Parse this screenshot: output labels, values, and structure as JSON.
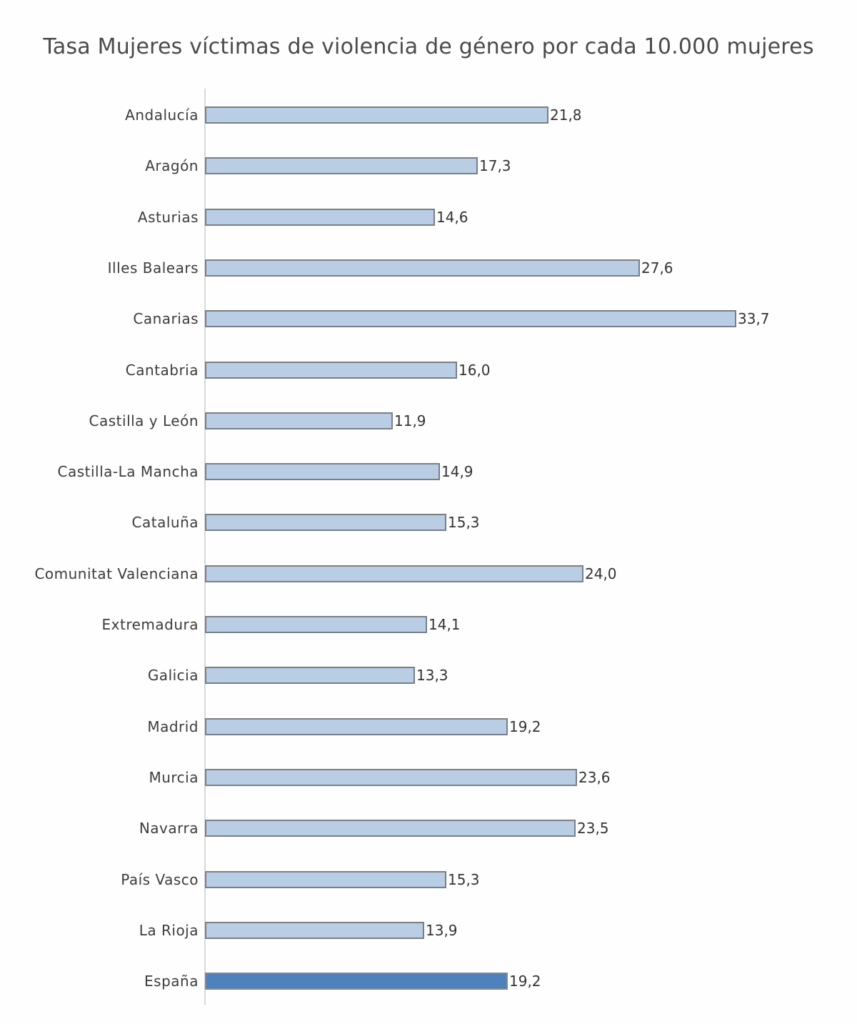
{
  "chart_data": {
    "type": "bar",
    "orientation": "horizontal",
    "title": "Tasa Mujeres víctimas de violencia de género por cada 10.000 mujeres",
    "xlabel": "",
    "ylabel": "",
    "xlim": [
      0,
      35
    ],
    "grid": false,
    "legend": null,
    "data_labels": true,
    "decimal_separator": ",",
    "colors": {
      "default": "#b9cde5",
      "highlight": "#4f81bd",
      "border": "#7a7f86"
    },
    "categories": [
      "Andalucía",
      "Aragón",
      "Asturias",
      "Illes Balears",
      "Canarias",
      "Cantabria",
      "Castilla y León",
      "Castilla-La Mancha",
      "Cataluña",
      "Comunitat Valenciana",
      "Extremadura",
      "Galicia",
      "Madrid",
      "Murcia",
      "Navarra",
      "País Vasco",
      "La Rioja",
      "España"
    ],
    "values": [
      21.8,
      17.3,
      14.6,
      27.6,
      33.7,
      16.0,
      11.9,
      14.9,
      15.3,
      24.0,
      14.1,
      13.3,
      19.2,
      23.6,
      23.5,
      15.3,
      13.9,
      19.2
    ],
    "value_labels": [
      "21,8",
      "17,3",
      "14,6",
      "27,6",
      "33,7",
      "16,0",
      "11,9",
      "14,9",
      "15,3",
      "24,0",
      "14,1",
      "13,3",
      "19,2",
      "23,6",
      "23,5",
      "15,3",
      "13,9",
      "19,2"
    ],
    "highlighted_category": "España"
  }
}
